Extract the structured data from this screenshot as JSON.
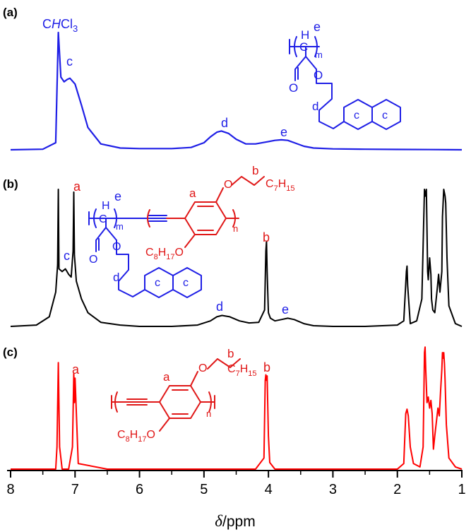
{
  "chart_data": [
    {
      "type": "line",
      "panel": "(a)",
      "color": "#1f1fe6",
      "solvent_label": "CHCl3",
      "peak_labels": [
        "c",
        "d",
        "e"
      ],
      "series": [
        {
          "x": [
            8.0,
            7.5,
            7.3,
            7.26,
            7.22,
            7.17,
            7.12,
            7.08,
            7.0,
            6.9,
            6.8,
            6.6,
            6.3,
            6.0,
            5.5,
            5.2,
            5.0,
            4.9,
            4.8,
            4.73,
            4.62,
            4.5,
            4.35,
            4.2,
            4.0,
            3.9,
            3.8,
            3.7,
            3.6,
            3.45,
            3.3,
            3.0,
            2.5,
            2.0,
            1.5,
            1.0
          ],
          "y": [
            0.0,
            0.005,
            0.06,
            1.0,
            0.62,
            0.58,
            0.6,
            0.61,
            0.56,
            0.38,
            0.19,
            0.05,
            0.015,
            0.01,
            0.01,
            0.02,
            0.06,
            0.11,
            0.15,
            0.16,
            0.14,
            0.09,
            0.05,
            0.05,
            0.07,
            0.08,
            0.085,
            0.08,
            0.06,
            0.03,
            0.015,
            0.008,
            0.005,
            0.003,
            0.002,
            0.0
          ]
        }
      ]
    },
    {
      "type": "line",
      "panel": "(b)",
      "color": "#000000",
      "peak_labels": [
        "a",
        "c",
        "b",
        "d",
        "e"
      ],
      "series": [
        {
          "x": [
            8.0,
            7.6,
            7.4,
            7.3,
            7.27,
            7.26,
            7.25,
            7.2,
            7.15,
            7.1,
            7.06,
            7.03,
            7.02,
            7.01,
            6.98,
            6.9,
            6.8,
            6.6,
            6.3,
            6.0,
            5.5,
            5.1,
            4.9,
            4.8,
            4.72,
            4.6,
            4.45,
            4.3,
            4.15,
            4.06,
            4.04,
            4.03,
            4.02,
            4.0,
            3.97,
            3.9,
            3.8,
            3.7,
            3.6,
            3.45,
            3.3,
            3.0,
            2.5,
            2.0,
            1.9,
            1.86,
            1.85,
            1.84,
            1.8,
            1.7,
            1.62,
            1.58,
            1.57,
            1.55,
            1.53,
            1.52,
            1.5,
            1.48,
            1.47,
            1.45,
            1.42,
            1.38,
            1.36,
            1.34,
            1.31,
            1.3,
            1.28,
            1.26,
            1.25,
            1.23,
            1.2,
            1.1,
            1.0
          ],
          "y": [
            0.0,
            0.01,
            0.07,
            0.25,
            0.45,
            1.0,
            0.42,
            0.4,
            0.42,
            0.38,
            0.36,
            0.55,
            0.98,
            0.52,
            0.33,
            0.2,
            0.1,
            0.03,
            0.01,
            0.0,
            0.0,
            0.01,
            0.04,
            0.07,
            0.08,
            0.07,
            0.04,
            0.025,
            0.03,
            0.12,
            0.55,
            0.62,
            0.4,
            0.1,
            0.06,
            0.04,
            0.05,
            0.06,
            0.05,
            0.02,
            0.005,
            0.0,
            0.0,
            0.01,
            0.04,
            0.4,
            0.44,
            0.3,
            0.02,
            0.04,
            0.2,
            1.0,
            0.95,
            1.0,
            0.4,
            0.34,
            0.5,
            0.38,
            0.2,
            0.12,
            0.1,
            0.28,
            0.38,
            0.25,
            0.4,
            0.8,
            1.0,
            0.95,
            0.9,
            0.5,
            0.15,
            0.02,
            0.0
          ]
        }
      ]
    },
    {
      "type": "line",
      "panel": "(c)",
      "color": "#ff0000",
      "peak_labels": [
        "a",
        "b"
      ],
      "series": [
        {
          "x": [
            8.0,
            7.5,
            7.3,
            7.28,
            7.26,
            7.24,
            7.2,
            7.1,
            7.04,
            7.02,
            7.01,
            7.0,
            6.95,
            6.5,
            5.0,
            4.2,
            4.07,
            4.05,
            4.04,
            4.03,
            4.02,
            4.0,
            3.98,
            3.9,
            3.0,
            2.0,
            1.9,
            1.87,
            1.85,
            1.83,
            1.8,
            1.75,
            1.65,
            1.6,
            1.58,
            1.57,
            1.56,
            1.54,
            1.52,
            1.5,
            1.48,
            1.46,
            1.44,
            1.42,
            1.39,
            1.37,
            1.35,
            1.33,
            1.31,
            1.3,
            1.29,
            1.28,
            1.27,
            1.26,
            1.24,
            1.2,
            1.1,
            1.0
          ],
          "y": [
            0.0,
            0.0,
            0.0,
            0.2,
            0.96,
            0.2,
            0.0,
            0.0,
            0.2,
            0.86,
            0.6,
            0.82,
            0.05,
            0.0,
            0.0,
            0.0,
            0.1,
            0.8,
            0.85,
            0.8,
            0.84,
            0.3,
            0.06,
            0.0,
            0.0,
            0.0,
            0.05,
            0.5,
            0.54,
            0.48,
            0.2,
            0.05,
            0.02,
            0.2,
            1.05,
            1.1,
            0.9,
            0.6,
            0.65,
            0.55,
            0.62,
            0.5,
            0.18,
            0.3,
            0.45,
            0.55,
            0.48,
            0.7,
            0.9,
            1.05,
            1.0,
            1.05,
            0.95,
            0.8,
            0.4,
            0.1,
            0.02,
            0.0
          ]
        }
      ]
    }
  ],
  "axis": {
    "xlabel_symbol": "δ",
    "xlabel_unit": "/ppm",
    "xlim": [
      8,
      1
    ],
    "ticks": [
      "8",
      "7",
      "6",
      "5",
      "4",
      "3",
      "2",
      "1"
    ]
  },
  "panels": {
    "a": {
      "label": "(a)",
      "solvent": {
        "pre": "C",
        "h": "H",
        "post": "Cl",
        "sub": "3"
      },
      "peaks": {
        "c": "c",
        "d": "d",
        "e": "e"
      },
      "struct": {
        "e": "e",
        "h": "H",
        "c1": "C",
        "m": "m",
        "o1": "O",
        "o2": "O",
        "d": "d",
        "ring1": "c",
        "ring2": "c"
      }
    },
    "b": {
      "label": "(b)",
      "peaks": {
        "a": "a",
        "c": "c",
        "b": "b",
        "d": "d",
        "e": "e"
      },
      "struct": {
        "e": "e",
        "h": "H",
        "c1": "C",
        "m": "m",
        "o1": "O",
        "o2": "O",
        "d": "d",
        "ring1": "c",
        "ring2": "c",
        "a": "a",
        "b": "b",
        "n": "n",
        "oa": "O",
        "ob": "O",
        "c7": "C",
        "c7sub": "7",
        "c7h": "H",
        "c7hsub": "15",
        "c8": "C",
        "c8sub": "8",
        "c8h": "H",
        "c8hsub": "17"
      }
    },
    "c": {
      "label": "(c)",
      "peaks": {
        "a": "a",
        "b": "b"
      },
      "struct": {
        "a": "a",
        "b": "b",
        "n": "n",
        "oa": "O",
        "ob": "O",
        "c7": "C",
        "c7sub": "7",
        "c7h": "H",
        "c7hsub": "15",
        "c8": "C",
        "c8sub": "8",
        "c8h": "H",
        "c8hsub": "17"
      }
    }
  }
}
